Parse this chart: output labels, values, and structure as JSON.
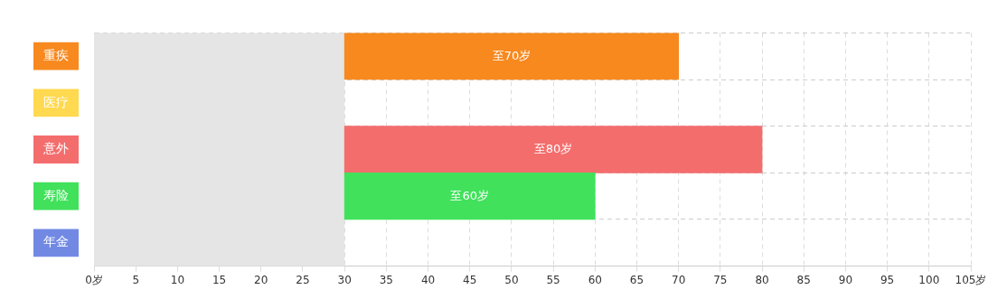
{
  "chart_data": {
    "type": "bar",
    "orientation": "horizontal",
    "categories": [
      "重疾",
      "医疗",
      "意外",
      "寿险",
      "年金"
    ],
    "base": [
      30,
      null,
      30,
      30,
      null
    ],
    "values": [
      40,
      null,
      50,
      30,
      null
    ],
    "colors": [
      "#f7891f",
      "#ffd94f",
      "#f46d6d",
      "#41e15b",
      "#7289e4"
    ],
    "value_labels": [
      "至70岁",
      null,
      "至80岁",
      "至60岁",
      null
    ],
    "xlim": [
      0,
      105
    ],
    "xticks": [
      {
        "value": 0,
        "label": "0岁"
      },
      5,
      10,
      15,
      20,
      25,
      30,
      35,
      40,
      45,
      50,
      55,
      60,
      65,
      70,
      75,
      80,
      85,
      90,
      95,
      100,
      {
        "value": 105,
        "label": "105岁"
      }
    ],
    "bands": [
      {
        "axis": "x",
        "from": 0,
        "to": 30,
        "color": "#e5e5e5"
      }
    ],
    "grid": true,
    "legend": false
  }
}
